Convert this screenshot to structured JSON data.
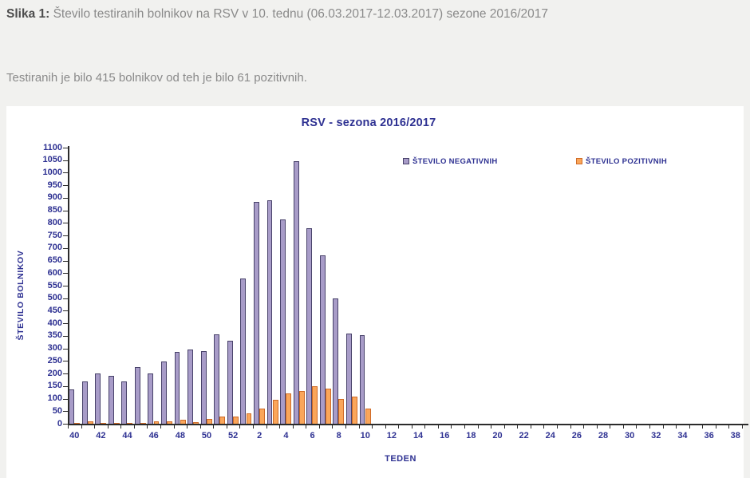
{
  "page": {
    "figure_label": "Slika 1:",
    "figure_caption": "Število testiranih bolnikov na RSV v 10. tednu (06.03.2017-12.03.2017) sezone 2016/2017",
    "subtitle": "Testiranih je bilo 415 bolnikov od teh je bilo 61 pozitivnih."
  },
  "chart_data": {
    "type": "bar",
    "title": "RSV - sezona 2016/2017",
    "xlabel": "TEDEN",
    "ylabel": "ŠTEVILO  BOLNIKOV",
    "ylim": [
      0,
      1100
    ],
    "ytick_step": 50,
    "xtick_label_rule": "even week numbers only",
    "grid": false,
    "legend_position": "inside-top-right",
    "text_color": "#2e3192",
    "categories": [
      "40",
      "41",
      "42",
      "43",
      "44",
      "45",
      "46",
      "47",
      "48",
      "49",
      "50",
      "51",
      "52",
      "1",
      "2",
      "3",
      "4",
      "5",
      "6",
      "7",
      "8",
      "9",
      "10",
      "11",
      "12",
      "13",
      "14",
      "15",
      "16",
      "17",
      "18",
      "19",
      "20",
      "21",
      "22",
      "23",
      "24",
      "25",
      "26",
      "27",
      "28",
      "29",
      "30",
      "31",
      "32",
      "33",
      "34",
      "35",
      "36",
      "37",
      "38"
    ],
    "series": [
      {
        "name": "ŠTEVILO NEGATIVNIH",
        "fill": "#a89cc8",
        "border": "#48426a",
        "values": [
          138,
          170,
          200,
          190,
          168,
          225,
          200,
          247,
          286,
          295,
          290,
          357,
          331,
          580,
          885,
          890,
          815,
          1045,
          780,
          670,
          500,
          360,
          354,
          0,
          0,
          0,
          0,
          0,
          0,
          0,
          0,
          0,
          0,
          0,
          0,
          0,
          0,
          0,
          0,
          0,
          0,
          0,
          0,
          0,
          0,
          0,
          0,
          0,
          0,
          0,
          0
        ]
      },
      {
        "name": "ŠTEVILO POZITIVNIH",
        "fill": "#faa65a",
        "border": "#cf6b28",
        "values": [
          3,
          10,
          4,
          4,
          3,
          4,
          8,
          8,
          15,
          6,
          20,
          30,
          30,
          40,
          60,
          95,
          120,
          130,
          150,
          140,
          100,
          108,
          61,
          0,
          0,
          0,
          0,
          0,
          0,
          0,
          0,
          0,
          0,
          0,
          0,
          0,
          0,
          0,
          0,
          0,
          0,
          0,
          0,
          0,
          0,
          0,
          0,
          0,
          0,
          0,
          0
        ]
      }
    ]
  }
}
